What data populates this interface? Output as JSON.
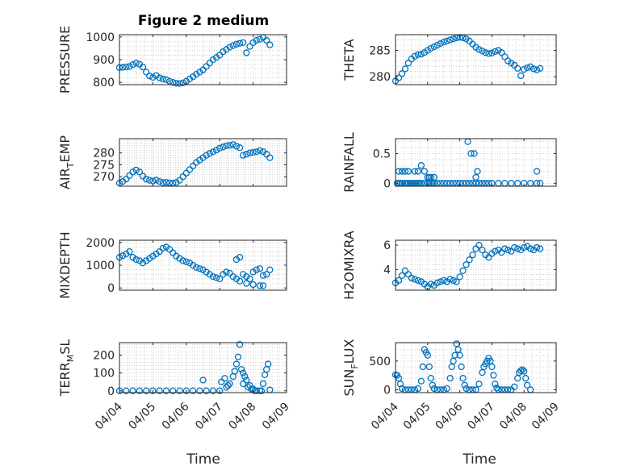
{
  "figure": {
    "title": "Figure 2 medium",
    "xlabel": "Time",
    "x_ticks": [
      "04/04",
      "04/05",
      "04/06",
      "04/07",
      "04/08",
      "04/09"
    ]
  },
  "chart_data": [
    {
      "type": "scatter",
      "ylabel": "PRESSURE",
      "ylim": [
        790,
        1010
      ],
      "yticks": [
        800,
        900,
        1000
      ],
      "xlim": [
        0,
        5
      ],
      "grid": true,
      "x": [
        0.0,
        0.1,
        0.2,
        0.3,
        0.4,
        0.5,
        0.6,
        0.7,
        0.8,
        0.9,
        1.0,
        1.1,
        1.2,
        1.3,
        1.4,
        1.5,
        1.6,
        1.7,
        1.8,
        1.9,
        2.0,
        2.1,
        2.2,
        2.3,
        2.4,
        2.5,
        2.6,
        2.7,
        2.8,
        2.9,
        3.0,
        3.1,
        3.2,
        3.3,
        3.4,
        3.5,
        3.6,
        3.7,
        3.8,
        3.9,
        4.0,
        4.1,
        4.2,
        4.3,
        4.4,
        4.5
      ],
      "y": [
        865,
        866,
        868,
        870,
        878,
        885,
        880,
        868,
        845,
        828,
        822,
        830,
        820,
        815,
        812,
        805,
        800,
        796,
        795,
        798,
        805,
        815,
        825,
        836,
        845,
        855,
        870,
        885,
        900,
        910,
        920,
        935,
        945,
        955,
        962,
        968,
        972,
        975,
        930,
        958,
        975,
        985,
        990,
        998,
        985,
        965
      ]
    },
    {
      "type": "scatter",
      "ylabel": "THETA",
      "ylim": [
        278.5,
        288
      ],
      "yticks": [
        280,
        285
      ],
      "xlim": [
        0,
        5
      ],
      "grid": true,
      "x": [
        0.0,
        0.1,
        0.2,
        0.3,
        0.4,
        0.5,
        0.6,
        0.7,
        0.8,
        0.9,
        1.0,
        1.1,
        1.2,
        1.3,
        1.4,
        1.5,
        1.6,
        1.7,
        1.8,
        1.9,
        2.0,
        2.1,
        2.2,
        2.3,
        2.4,
        2.5,
        2.6,
        2.7,
        2.8,
        2.9,
        3.0,
        3.1,
        3.2,
        3.3,
        3.4,
        3.5,
        3.6,
        3.7,
        3.8,
        3.9,
        4.0,
        4.1,
        4.2,
        4.3,
        4.4,
        4.5
      ],
      "y": [
        279.2,
        279.8,
        280.6,
        281.5,
        282.6,
        283.4,
        283.9,
        284.2,
        284.3,
        284.6,
        285.0,
        285.4,
        285.7,
        286.0,
        286.3,
        286.6,
        286.8,
        287.0,
        287.2,
        287.4,
        287.5,
        287.4,
        287.2,
        286.8,
        286.2,
        285.6,
        285.2,
        284.9,
        284.6,
        284.4,
        284.5,
        284.8,
        285.0,
        284.6,
        283.8,
        283.0,
        282.6,
        282.2,
        281.6,
        280.2,
        281.4,
        281.7,
        281.9,
        281.5,
        281.3,
        281.6
      ]
    },
    {
      "type": "scatter",
      "ylabel": "AIR",
      "ylabel_sub": "T",
      "ylabel_rest": "EMP",
      "ylim": [
        266,
        286
      ],
      "yticks": [
        270,
        275,
        280
      ],
      "xlim": [
        0,
        5
      ],
      "grid": true,
      "x": [
        0.0,
        0.1,
        0.2,
        0.3,
        0.4,
        0.5,
        0.6,
        0.7,
        0.8,
        0.9,
        1.0,
        1.1,
        1.2,
        1.3,
        1.4,
        1.5,
        1.6,
        1.7,
        1.8,
        1.9,
        2.0,
        2.1,
        2.2,
        2.3,
        2.4,
        2.5,
        2.6,
        2.7,
        2.8,
        2.9,
        3.0,
        3.1,
        3.2,
        3.3,
        3.4,
        3.5,
        3.6,
        3.7,
        3.8,
        3.9,
        4.0,
        4.1,
        4.2,
        4.3,
        4.4,
        4.5
      ],
      "y": [
        267.3,
        268.0,
        269.0,
        270.5,
        272.0,
        272.8,
        272.0,
        270.2,
        269.0,
        268.5,
        268.2,
        268.6,
        268.0,
        267.5,
        267.6,
        267.4,
        267.3,
        267.6,
        268.5,
        270.0,
        271.5,
        273.0,
        274.5,
        276.0,
        277.0,
        278.0,
        279.0,
        279.8,
        280.5,
        281.2,
        282.0,
        282.5,
        283.0,
        283.2,
        283.5,
        282.8,
        282.2,
        279.0,
        279.5,
        280.0,
        280.2,
        280.5,
        281.0,
        280.5,
        279.5,
        278.0
      ]
    },
    {
      "type": "scatter",
      "ylabel": "RAINFALL",
      "ylim": [
        -0.05,
        0.75
      ],
      "yticks": [
        0,
        0.5
      ],
      "xlim": [
        0,
        5
      ],
      "grid": true,
      "x": [
        0.05,
        0.1,
        0.15,
        0.2,
        0.3,
        0.35,
        0.4,
        0.45,
        0.5,
        0.55,
        0.6,
        0.65,
        0.7,
        0.75,
        0.8,
        0.9,
        1.0,
        1.05,
        1.1,
        1.15,
        1.2,
        1.3,
        1.4,
        1.5,
        1.6,
        1.7,
        1.8,
        1.9,
        2.0,
        2.1,
        2.2,
        2.3,
        2.4,
        2.5,
        2.6,
        2.7,
        2.8,
        2.9,
        3.0,
        3.2,
        3.4,
        3.6,
        3.8,
        4.0,
        4.2,
        4.4,
        4.5,
        0.1,
        0.2,
        0.3,
        0.4,
        0.6,
        0.7,
        0.8,
        0.9,
        1.0,
        1.05,
        1.1,
        1.2,
        2.25,
        2.35,
        2.45,
        2.5,
        2.55,
        4.4
      ],
      "y": [
        0,
        0,
        0,
        0,
        0,
        0,
        0,
        0,
        0,
        0,
        0,
        0,
        0,
        0,
        0,
        0,
        0,
        0,
        0,
        0,
        0,
        0,
        0,
        0,
        0,
        0,
        0,
        0,
        0,
        0,
        0,
        0,
        0,
        0,
        0,
        0,
        0,
        0,
        0,
        0,
        0,
        0,
        0,
        0,
        0,
        0,
        0,
        0.2,
        0.2,
        0.2,
        0.2,
        0.2,
        0.2,
        0.3,
        0.2,
        0.1,
        0.1,
        0.1,
        0.1,
        0.7,
        0.5,
        0.5,
        0.1,
        0.2,
        0.2
      ]
    },
    {
      "type": "scatter",
      "ylabel": "MIXDEPTH",
      "ylim": [
        -100,
        2100
      ],
      "yticks": [
        0,
        1000,
        2000
      ],
      "xlim": [
        0,
        5
      ],
      "grid": true,
      "x": [
        0.0,
        0.1,
        0.2,
        0.3,
        0.4,
        0.5,
        0.6,
        0.7,
        0.8,
        0.9,
        1.0,
        1.1,
        1.2,
        1.3,
        1.4,
        1.5,
        1.6,
        1.7,
        1.8,
        1.9,
        2.0,
        2.1,
        2.2,
        2.3,
        2.4,
        2.5,
        2.6,
        2.7,
        2.8,
        2.9,
        3.0,
        3.1,
        3.2,
        3.3,
        3.4,
        3.5,
        3.6,
        3.7,
        3.8,
        3.9,
        4.0,
        4.1,
        4.2,
        4.3,
        4.4,
        4.5,
        3.5,
        3.6,
        3.8,
        4.0,
        4.2,
        4.3
      ],
      "y": [
        1350,
        1420,
        1500,
        1600,
        1350,
        1250,
        1200,
        1100,
        1200,
        1300,
        1400,
        1500,
        1600,
        1750,
        1800,
        1700,
        1550,
        1400,
        1300,
        1200,
        1150,
        1100,
        1000,
        900,
        850,
        800,
        700,
        600,
        500,
        450,
        400,
        600,
        700,
        650,
        500,
        400,
        300,
        600,
        500,
        400,
        700,
        800,
        850,
        550,
        600,
        800,
        1250,
        1350,
        200,
        150,
        100,
        100
      ]
    },
    {
      "type": "scatter",
      "ylabel": "H2OMIXRA",
      "ylim": [
        2.3,
        6.4
      ],
      "yticks": [
        4,
        6
      ],
      "xlim": [
        0,
        5
      ],
      "grid": true,
      "x": [
        0.0,
        0.1,
        0.2,
        0.3,
        0.4,
        0.5,
        0.6,
        0.7,
        0.8,
        0.9,
        1.0,
        1.1,
        1.2,
        1.3,
        1.4,
        1.5,
        1.6,
        1.7,
        1.8,
        1.9,
        2.0,
        2.1,
        2.2,
        2.3,
        2.4,
        2.5,
        2.6,
        2.7,
        2.8,
        2.9,
        3.0,
        3.1,
        3.2,
        3.3,
        3.4,
        3.5,
        3.6,
        3.7,
        3.8,
        3.9,
        4.0,
        4.1,
        4.2,
        4.3,
        4.4,
        4.5
      ],
      "y": [
        2.9,
        3.1,
        3.5,
        3.9,
        3.6,
        3.3,
        3.2,
        3.1,
        3.0,
        2.8,
        2.6,
        2.8,
        2.7,
        2.9,
        3.0,
        3.1,
        3.0,
        3.2,
        3.1,
        3.0,
        3.4,
        3.9,
        4.4,
        4.8,
        5.2,
        5.7,
        6.0,
        5.6,
        5.2,
        5.0,
        5.3,
        5.5,
        5.6,
        5.4,
        5.7,
        5.6,
        5.5,
        5.8,
        5.7,
        5.6,
        5.8,
        5.9,
        5.7,
        5.6,
        5.8,
        5.7
      ]
    },
    {
      "type": "scatter",
      "ylabel": "TERR",
      "ylabel_sub": "M",
      "ylabel_rest": "SL",
      "ylim": [
        -10,
        270
      ],
      "yticks": [
        0,
        100,
        200
      ],
      "xlim": [
        0,
        5
      ],
      "grid": true,
      "x": [
        0.0,
        0.2,
        0.4,
        0.6,
        0.8,
        1.0,
        1.2,
        1.4,
        1.6,
        1.8,
        2.0,
        2.2,
        2.4,
        2.6,
        2.8,
        3.0,
        3.2,
        3.3,
        3.4,
        3.45,
        3.5,
        3.55,
        3.6,
        3.65,
        3.7,
        3.75,
        3.8,
        3.9,
        4.0,
        4.1,
        4.2,
        4.3,
        4.35,
        4.4,
        4.45,
        2.5,
        3.05,
        3.15,
        3.25,
        3.7,
        3.85,
        3.95,
        4.05,
        4.25,
        4.5
      ],
      "y": [
        0,
        0,
        0,
        0,
        0,
        0,
        0,
        0,
        0,
        0,
        0,
        0,
        0,
        0,
        0,
        0,
        20,
        40,
        80,
        110,
        150,
        190,
        260,
        120,
        100,
        80,
        60,
        30,
        10,
        0,
        0,
        40,
        90,
        120,
        150,
        60,
        50,
        70,
        30,
        40,
        20,
        10,
        0,
        0,
        5
      ]
    },
    {
      "type": "scatter",
      "ylabel": "SUN",
      "ylabel_sub": "F",
      "ylabel_rest": "LUX",
      "ylim": [
        -50,
        820
      ],
      "yticks": [
        0,
        500
      ],
      "xlim": [
        0,
        5
      ],
      "grid": true,
      "x": [
        0.0,
        0.05,
        0.1,
        0.15,
        0.2,
        0.3,
        0.4,
        0.5,
        0.6,
        0.7,
        0.8,
        0.85,
        0.9,
        0.95,
        1.0,
        1.05,
        1.1,
        1.15,
        1.2,
        1.3,
        1.4,
        1.5,
        1.6,
        1.7,
        1.75,
        1.8,
        1.85,
        1.9,
        1.95,
        2.0,
        2.05,
        2.1,
        2.15,
        2.2,
        2.3,
        2.4,
        2.5,
        2.6,
        2.7,
        2.75,
        2.8,
        2.85,
        2.9,
        2.95,
        3.0,
        3.05,
        3.1,
        3.15,
        3.2,
        3.3,
        3.4,
        3.5,
        3.6,
        3.7,
        3.8,
        3.85,
        3.9,
        3.95,
        4.0,
        4.05,
        4.1,
        4.2
      ],
      "y": [
        260,
        250,
        200,
        100,
        20,
        0,
        0,
        0,
        0,
        20,
        150,
        400,
        700,
        650,
        600,
        400,
        200,
        80,
        20,
        0,
        0,
        0,
        20,
        200,
        400,
        500,
        600,
        800,
        700,
        600,
        400,
        200,
        80,
        20,
        0,
        0,
        0,
        100,
        300,
        400,
        450,
        500,
        550,
        500,
        400,
        250,
        100,
        30,
        0,
        0,
        0,
        0,
        0,
        50,
        200,
        300,
        330,
        350,
        320,
        200,
        80,
        0
      ]
    }
  ]
}
